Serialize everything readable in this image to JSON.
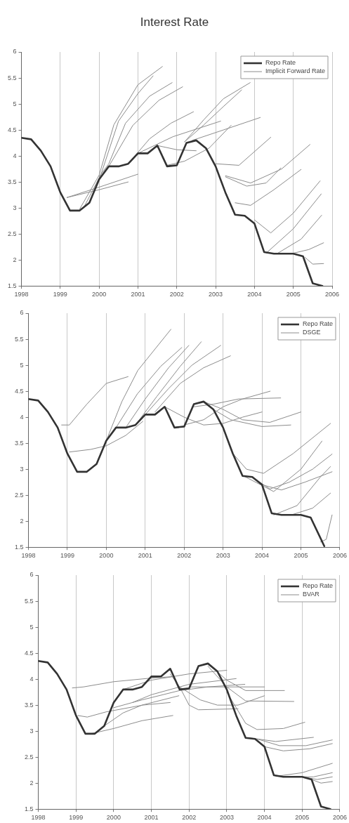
{
  "chart_data": [
    {
      "type": "line",
      "title": "Interest Rate",
      "xlim": [
        1998,
        2006
      ],
      "xticks": [
        1998,
        1999,
        2000,
        2001,
        2002,
        2003,
        2004,
        2005,
        2006
      ],
      "ylim": [
        1.5,
        6
      ],
      "yticks": [
        1.5,
        2,
        2.5,
        3,
        3.5,
        4,
        4.5,
        5,
        5.5,
        6
      ],
      "grid": "x",
      "legend": "top right",
      "marker": "none",
      "line_style": "solid",
      "series": [
        {
          "name": "Repo Rate",
          "color": "#333333",
          "x": [
            1998,
            1998.25,
            1998.5,
            1998.75,
            1999,
            1999.25,
            1999.5,
            1999.75,
            2000,
            2000.25,
            2000.5,
            2000.75,
            2001,
            2001.25,
            2001.5,
            2001.75,
            2002,
            2002.25,
            2002.5,
            2002.75,
            2003,
            2003.25,
            2003.5,
            2003.75,
            2004,
            2004.25,
            2004.5,
            2004.75,
            2005,
            2005.25,
            2005.5,
            2005.75
          ],
          "values": [
            4.35,
            4.32,
            4.1,
            3.8,
            3.3,
            2.95,
            2.95,
            3.1,
            3.55,
            3.8,
            3.8,
            3.85,
            4.05,
            4.05,
            4.2,
            3.8,
            3.82,
            4.25,
            4.3,
            4.15,
            3.8,
            3.3,
            2.87,
            2.85,
            2.7,
            2.15,
            2.12,
            2.12,
            2.12,
            2.07,
            1.55,
            1.5
          ]
        },
        {
          "name": "Implicit Forward Rate",
          "color": "#8c8c8c",
          "x": [
            1999.17,
            2000,
            2001
          ],
          "values": [
            3.2,
            3.4,
            3.65
          ]
        },
        {
          "color": "#8c8c8c",
          "x": [
            1999.17,
            2000,
            2000.75
          ],
          "values": [
            3.2,
            3.35,
            3.5
          ]
        },
        {
          "color": "#8c8c8c",
          "x": [
            1999.5,
            2000,
            2000.38,
            2001,
            2001.63
          ],
          "values": [
            2.98,
            3.63,
            4.6,
            5.37,
            5.72
          ]
        },
        {
          "color": "#8c8c8c",
          "x": [
            1999.6,
            2000.05,
            2000.5,
            2001,
            2001.39
          ],
          "values": [
            3.0,
            3.65,
            4.67,
            5.2,
            5.54
          ]
        },
        {
          "color": "#8c8c8c",
          "x": [
            2000,
            2000.25,
            2000.68,
            2001.3,
            2001.88
          ],
          "values": [
            3.6,
            3.85,
            4.63,
            5.15,
            5.41
          ]
        },
        {
          "color": "#8c8c8c",
          "x": [
            2000.25,
            2000.87,
            2001.54,
            2002.15
          ],
          "values": [
            3.8,
            4.59,
            5.07,
            5.33
          ]
        },
        {
          "color": "#8c8c8c",
          "x": [
            2000.75,
            2001.3,
            2001.85,
            2002.43
          ],
          "values": [
            3.85,
            4.33,
            4.63,
            4.85
          ]
        },
        {
          "color": "#8c8c8c",
          "x": [
            2001,
            2001.9,
            2003.13
          ],
          "values": [
            4.05,
            4.37,
            4.67
          ]
        },
        {
          "color": "#8c8c8c",
          "x": [
            2001.5,
            2002,
            2002.5
          ],
          "values": [
            4.2,
            4.12,
            4.1
          ]
        },
        {
          "color": "#8c8c8c",
          "x": [
            2001.75,
            2002.2,
            2002.83,
            2003.4
          ],
          "values": [
            3.82,
            3.9,
            4.15,
            4.59
          ]
        },
        {
          "color": "#8c8c8c",
          "x": [
            2002.2,
            2002.7,
            2003.2,
            2003.89
          ],
          "values": [
            4.27,
            4.7,
            5.1,
            5.41
          ]
        },
        {
          "color": "#8c8c8c",
          "x": [
            2002.2,
            2002.7,
            2003.2,
            2003.67
          ],
          "values": [
            4.27,
            4.6,
            4.95,
            5.27
          ]
        },
        {
          "color": "#8c8c8c",
          "x": [
            2002.4,
            2003.2,
            2004.15
          ],
          "values": [
            4.3,
            4.5,
            4.74
          ]
        },
        {
          "color": "#8c8c8c",
          "x": [
            2003,
            2003.6,
            2004.42
          ],
          "values": [
            3.85,
            3.82,
            4.36
          ]
        },
        {
          "color": "#8c8c8c",
          "x": [
            2003.25,
            2003.9,
            2004.7,
            2005.43
          ],
          "values": [
            3.62,
            3.48,
            3.75,
            4.22
          ]
        },
        {
          "color": "#8c8c8c",
          "x": [
            2003.25,
            2003.8,
            2004.3,
            2004.68
          ],
          "values": [
            3.6,
            3.42,
            3.48,
            3.77
          ]
        },
        {
          "color": "#8c8c8c",
          "x": [
            2003.5,
            2003.9,
            2004.5,
            2005.2
          ],
          "values": [
            3.1,
            3.05,
            3.35,
            3.74
          ]
        },
        {
          "color": "#8c8c8c",
          "x": [
            2004,
            2004.42,
            2005,
            2005.69
          ],
          "values": [
            2.77,
            2.52,
            2.9,
            3.52
          ]
        },
        {
          "color": "#8c8c8c",
          "x": [
            2004.3,
            2005,
            2005.72
          ],
          "values": [
            2.13,
            2.6,
            3.27
          ]
        },
        {
          "color": "#8c8c8c",
          "x": [
            2004.6,
            2005.2,
            2005.73
          ],
          "values": [
            2.13,
            2.4,
            2.86
          ]
        },
        {
          "color": "#8c8c8c",
          "x": [
            2005,
            2005.4,
            2005.78
          ],
          "values": [
            2.13,
            2.2,
            2.33
          ]
        },
        {
          "color": "#8c8c8c",
          "x": [
            2005.3,
            2005.5,
            2005.78
          ],
          "values": [
            2.05,
            1.92,
            1.93
          ]
        }
      ]
    },
    {
      "type": "line",
      "xlim": [
        1998,
        2006
      ],
      "xticks": [
        1998,
        1999,
        2000,
        2001,
        2002,
        2003,
        2004,
        2005,
        2006
      ],
      "ylim": [
        1.5,
        6
      ],
      "yticks": [
        1.5,
        2,
        2.5,
        3,
        3.5,
        4,
        4.5,
        5,
        5.5,
        6
      ],
      "grid": "x",
      "legend": "top right",
      "marker": "none",
      "line_style": "solid",
      "series": [
        {
          "name": "Repo Rate",
          "color": "#333333",
          "x": [
            1998,
            1998.25,
            1998.5,
            1998.75,
            1999,
            1999.25,
            1999.5,
            1999.75,
            2000,
            2000.25,
            2000.5,
            2000.75,
            2001,
            2001.25,
            2001.5,
            2001.75,
            2002,
            2002.25,
            2002.5,
            2002.75,
            2003,
            2003.25,
            2003.5,
            2003.75,
            2004,
            2004.25,
            2004.5,
            2004.75,
            2005,
            2005.25,
            2005.6
          ],
          "values": [
            4.35,
            4.32,
            4.1,
            3.8,
            3.3,
            2.95,
            2.95,
            3.1,
            3.55,
            3.8,
            3.8,
            3.85,
            4.05,
            4.05,
            4.2,
            3.8,
            3.82,
            4.25,
            4.3,
            4.15,
            3.8,
            3.3,
            2.87,
            2.85,
            2.7,
            2.15,
            2.12,
            2.12,
            2.12,
            2.07,
            1.52
          ]
        },
        {
          "name": "DSGE",
          "color": "#8c8c8c",
          "x": [
            1998.85,
            1999.05,
            1999.5,
            2000,
            2000.56
          ],
          "values": [
            3.85,
            3.85,
            4.25,
            4.65,
            4.78
          ]
        },
        {
          "color": "#8c8c8c",
          "x": [
            1999.05,
            1999.6,
            2000,
            2000.5,
            2000.94
          ],
          "values": [
            3.33,
            3.38,
            3.45,
            3.65,
            3.92
          ]
        },
        {
          "color": "#8c8c8c",
          "x": [
            2000,
            2000.4,
            2000.81,
            2001.66
          ],
          "values": [
            3.55,
            4.3,
            4.9,
            5.69
          ]
        },
        {
          "color": "#8c8c8c",
          "x": [
            2000.25,
            2000.8,
            2001.4,
            2001.94
          ],
          "values": [
            3.8,
            4.45,
            4.98,
            5.34
          ]
        },
        {
          "color": "#8c8c8c",
          "x": [
            2000.5,
            2001,
            2001.6,
            2002.12
          ],
          "values": [
            3.8,
            4.35,
            4.95,
            5.38
          ]
        },
        {
          "color": "#8c8c8c",
          "x": [
            2000.75,
            2001.3,
            2001.9,
            2002.44
          ],
          "values": [
            3.85,
            4.4,
            4.98,
            5.45
          ]
        },
        {
          "color": "#8c8c8c",
          "x": [
            2001,
            2001.6,
            2002.2,
            2002.94
          ],
          "values": [
            4.05,
            4.55,
            5.0,
            5.38
          ]
        },
        {
          "color": "#8c8c8c",
          "x": [
            2001.25,
            2001.9,
            2002.5,
            2003.19
          ],
          "values": [
            4.1,
            4.65,
            4.95,
            5.18
          ]
        },
        {
          "color": "#8c8c8c",
          "x": [
            2001.5,
            2002,
            2002.5,
            2003,
            2003.5,
            2004
          ],
          "values": [
            4.2,
            4.0,
            3.85,
            3.88,
            4.0,
            4.1
          ]
        },
        {
          "color": "#8c8c8c",
          "x": [
            2002,
            2002.5,
            2003,
            2003.5,
            2004.21
          ],
          "values": [
            3.85,
            3.95,
            4.2,
            4.35,
            4.5
          ]
        },
        {
          "color": "#8c8c8c",
          "x": [
            2002.25,
            2002.75,
            2003.4,
            2004.48
          ],
          "values": [
            4.2,
            4.25,
            4.35,
            4.37
          ]
        },
        {
          "color": "#8c8c8c",
          "x": [
            2002.5,
            2003,
            2003.5,
            2004.2,
            2005
          ],
          "values": [
            4.3,
            4.15,
            3.95,
            3.9,
            4.1
          ]
        },
        {
          "color": "#8c8c8c",
          "x": [
            2002.75,
            2003.2,
            2004,
            2004.74
          ],
          "values": [
            4.15,
            3.95,
            3.82,
            3.85
          ]
        },
        {
          "color": "#8c8c8c",
          "x": [
            2003.25,
            2003.6,
            2004.04,
            2004.8,
            2005.76
          ],
          "values": [
            3.3,
            3.0,
            2.92,
            3.3,
            3.88
          ]
        },
        {
          "color": "#8c8c8c",
          "x": [
            2003.5,
            2004.3,
            2005,
            2005.54
          ],
          "values": [
            2.88,
            2.57,
            3.0,
            3.54
          ]
        },
        {
          "color": "#8c8c8c",
          "x": [
            2003.75,
            2004.2,
            2004.7,
            2005.3,
            2005.8
          ],
          "values": [
            2.85,
            2.62,
            2.75,
            3.0,
            3.29
          ]
        },
        {
          "color": "#8c8c8c",
          "x": [
            2004,
            2004.5,
            2005.1,
            2005.8
          ],
          "values": [
            2.7,
            2.6,
            2.75,
            2.95
          ]
        },
        {
          "color": "#8c8c8c",
          "x": [
            2004.3,
            2004.9,
            2005.5,
            2005.76
          ],
          "values": [
            2.12,
            2.3,
            2.85,
            3.05
          ]
        },
        {
          "color": "#8c8c8c",
          "x": [
            2004.75,
            2005.3,
            2005.76
          ],
          "values": [
            2.12,
            2.25,
            2.54
          ]
        },
        {
          "color": "#8c8c8c",
          "x": [
            2005.5,
            2005.65,
            2005.8
          ],
          "values": [
            1.6,
            1.65,
            2.12
          ]
        }
      ]
    },
    {
      "type": "line",
      "xlim": [
        1998,
        2006
      ],
      "xticks": [
        1998,
        1999,
        2000,
        2001,
        2002,
        2003,
        2004,
        2005,
        2006
      ],
      "ylim": [
        1.5,
        6
      ],
      "yticks": [
        1.5,
        2,
        2.5,
        3,
        3.5,
        4,
        4.5,
        5,
        5.5,
        6
      ],
      "grid": "x",
      "legend": "top right",
      "marker": "none",
      "line_style": "solid",
      "series": [
        {
          "name": "Repo Rate",
          "color": "#333333",
          "x": [
            1998,
            1998.25,
            1998.5,
            1998.75,
            1999,
            1999.25,
            1999.5,
            1999.75,
            2000,
            2000.25,
            2000.5,
            2000.75,
            2001,
            2001.25,
            2001.5,
            2001.75,
            2002,
            2002.25,
            2002.5,
            2002.75,
            2003,
            2003.25,
            2003.5,
            2003.75,
            2004,
            2004.25,
            2004.5,
            2004.75,
            2005,
            2005.25,
            2005.5,
            2005.75
          ],
          "values": [
            4.35,
            4.32,
            4.1,
            3.8,
            3.3,
            2.95,
            2.95,
            3.1,
            3.55,
            3.8,
            3.8,
            3.85,
            4.05,
            4.05,
            4.2,
            3.8,
            3.82,
            4.25,
            4.3,
            4.15,
            3.8,
            3.3,
            2.87,
            2.85,
            2.7,
            2.15,
            2.12,
            2.12,
            2.12,
            2.07,
            1.55,
            1.5
          ]
        },
        {
          "name": "BVAR",
          "color": "#8c8c8c",
          "x": [
            1998.9,
            1999.2,
            2000,
            2001,
            2001.6
          ],
          "values": [
            3.83,
            3.85,
            3.95,
            4.02,
            4.05
          ]
        },
        {
          "color": "#8c8c8c",
          "x": [
            1999.05,
            1999.3,
            1999.8,
            2000.77,
            2001.5
          ],
          "values": [
            3.3,
            3.27,
            3.37,
            3.5,
            3.55
          ]
        },
        {
          "color": "#8c8c8c",
          "x": [
            1999.4,
            2000,
            2000.75,
            2001.57
          ],
          "values": [
            2.95,
            3.05,
            3.2,
            3.3
          ]
        },
        {
          "color": "#8c8c8c",
          "x": [
            1999.75,
            2000.25,
            2000.75,
            2001.73
          ],
          "values": [
            3.1,
            3.35,
            3.5,
            3.68
          ]
        },
        {
          "color": "#8c8c8c",
          "x": [
            2000,
            2000.75,
            2001.75,
            2002.5,
            2003.48
          ],
          "values": [
            3.45,
            3.6,
            3.78,
            3.85,
            3.9
          ]
        },
        {
          "color": "#8c8c8c",
          "x": [
            2000.25,
            2001,
            2002,
            2003
          ],
          "values": [
            3.8,
            3.98,
            4.1,
            4.17
          ]
        },
        {
          "color": "#8c8c8c",
          "x": [
            2000.5,
            2001,
            2002,
            2003.25
          ],
          "values": [
            3.55,
            3.7,
            3.9,
            4.01
          ]
        },
        {
          "color": "#8c8c8c",
          "x": [
            2001.5,
            2001.75,
            2002,
            2002.25,
            2003.3
          ],
          "values": [
            4.1,
            3.85,
            3.5,
            3.41,
            3.43
          ]
        },
        {
          "color": "#8c8c8c",
          "x": [
            2001.75,
            2002.3,
            2002.75,
            2003.3,
            2004
          ],
          "values": [
            3.85,
            3.6,
            3.5,
            3.5,
            3.68
          ]
        },
        {
          "color": "#8c8c8c",
          "x": [
            2002,
            2003,
            2004
          ],
          "values": [
            3.85,
            3.85,
            3.85
          ]
        },
        {
          "color": "#8c8c8c",
          "x": [
            2002.5,
            2003,
            2003.5,
            2004.53
          ],
          "values": [
            4.3,
            3.98,
            3.78,
            3.78
          ]
        },
        {
          "color": "#8c8c8c",
          "x": [
            2002.5,
            2003,
            2003.5,
            2004.78
          ],
          "values": [
            4.25,
            3.85,
            3.58,
            3.57
          ]
        },
        {
          "color": "#8c8c8c",
          "x": [
            2003,
            2003.5,
            2003.8,
            2004.5,
            2005.07
          ],
          "values": [
            3.75,
            3.15,
            3.03,
            3.05,
            3.17
          ]
        },
        {
          "color": "#8c8c8c",
          "x": [
            2003.6,
            2004.3,
            2005.3
          ],
          "values": [
            2.87,
            2.8,
            2.88
          ]
        },
        {
          "color": "#8c8c8c",
          "x": [
            2003.8,
            2004.4,
            2005.1,
            2005.8
          ],
          "values": [
            2.85,
            2.72,
            2.72,
            2.83
          ]
        },
        {
          "color": "#8c8c8c",
          "x": [
            2004,
            2004.5,
            2005.2,
            2005.8
          ],
          "values": [
            2.7,
            2.62,
            2.66,
            2.76
          ]
        },
        {
          "color": "#8c8c8c",
          "x": [
            2004.3,
            2005,
            2005.8
          ],
          "values": [
            2.13,
            2.2,
            2.38
          ]
        },
        {
          "color": "#8c8c8c",
          "x": [
            2004.75,
            2005.3,
            2005.8
          ],
          "values": [
            2.12,
            2.12,
            2.2
          ]
        },
        {
          "color": "#8c8c8c",
          "x": [
            2005,
            2005.4,
            2005.8
          ],
          "values": [
            2.12,
            2.07,
            2.12
          ]
        },
        {
          "color": "#8c8c8c",
          "x": [
            2005.25,
            2005.5,
            2005.8
          ],
          "values": [
            2.07,
            2.0,
            2.03
          ]
        }
      ]
    }
  ]
}
